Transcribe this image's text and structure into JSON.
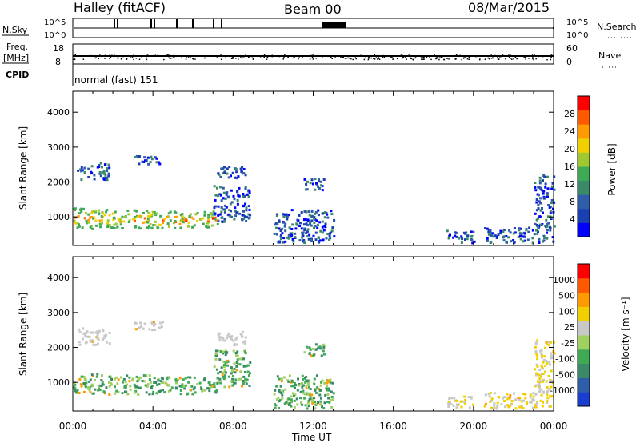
{
  "header": {
    "station": "Halley (fitACF)",
    "beam": "Beam 00",
    "date": "08/Mar/2015"
  },
  "strips": {
    "nsky_label": "N.Sky",
    "nsky_ticks": [
      "10^5",
      "10^0"
    ],
    "nsearch_label": "N.Search",
    "freq_label_1": "Freq.",
    "freq_label_2": "[MHz]",
    "freq_ticks": [
      "18",
      "8"
    ],
    "nave_label": "Nave",
    "nave_ticks": [
      "60",
      "0"
    ],
    "cpid_label": "CPID",
    "cpid_value": "normal (fast) 151"
  },
  "colors": {
    "power": [
      "#0000ff",
      "#1a3fb0",
      "#2f5da8",
      "#3a8a6a",
      "#3faa55",
      "#a0c830",
      "#f0d000",
      "#ff9a00",
      "#ff5a00",
      "#ff0000"
    ],
    "velocity": [
      "#1a3fd0",
      "#2f5da8",
      "#3a8a6a",
      "#3faa55",
      "#a0d060",
      "#c8c8c8",
      "#f0d000",
      "#ff9a00",
      "#ff5a00",
      "#ff0000"
    ]
  },
  "chart_data": [
    {
      "type": "heatmap",
      "name": "power",
      "ylabel": "Slant Range [km]",
      "xlabel": "",
      "x_ticks": [
        "00:00",
        "04:00",
        "08:00",
        "12:00",
        "16:00",
        "20:00",
        "00:00"
      ],
      "x_range_hours": [
        0,
        24
      ],
      "y_ticks": [
        1000,
        2000,
        3000,
        4000
      ],
      "y_range_km": [
        180,
        4600
      ],
      "colorbar_label": "Power [dB]",
      "colorbar_ticks": [
        "4",
        "8",
        "12",
        "16",
        "20",
        "24",
        "28"
      ],
      "scatter_regions_hours_km": [
        [
          0.0,
          2.0,
          650,
          1250
        ],
        [
          2.0,
          4.0,
          650,
          1200
        ],
        [
          4.0,
          6.0,
          650,
          1150
        ],
        [
          6.0,
          7.2,
          700,
          1150
        ],
        [
          7.0,
          8.8,
          850,
          1900
        ],
        [
          7.2,
          8.6,
          2050,
          2450
        ],
        [
          0.2,
          1.8,
          2050,
          2550
        ],
        [
          3.0,
          4.5,
          2500,
          2750
        ],
        [
          11.5,
          12.5,
          1700,
          2100
        ],
        [
          10.0,
          13.0,
          250,
          1200
        ],
        [
          18.5,
          20.0,
          250,
          600
        ],
        [
          20.5,
          24.0,
          250,
          700
        ],
        [
          23.0,
          24.0,
          700,
          2200
        ]
      ]
    },
    {
      "type": "heatmap",
      "name": "velocity",
      "ylabel": "Slant Range [km]",
      "xlabel": "Time UT",
      "x_ticks": [
        "00:00",
        "04:00",
        "08:00",
        "12:00",
        "16:00",
        "20:00",
        "00:00"
      ],
      "x_range_hours": [
        0,
        24
      ],
      "y_ticks": [
        1000,
        2000,
        3000,
        4000
      ],
      "y_range_km": [
        180,
        4600
      ],
      "colorbar_label": "Velocity [m s⁻¹]",
      "colorbar_ticks": [
        "1000",
        "500",
        "100",
        "25",
        "-25",
        "-100",
        "-500",
        "-1000"
      ],
      "scatter_regions_hours_km": [
        [
          0.0,
          2.0,
          650,
          1250
        ],
        [
          2.0,
          4.0,
          650,
          1200
        ],
        [
          4.0,
          6.0,
          650,
          1150
        ],
        [
          6.0,
          7.2,
          700,
          1150
        ],
        [
          7.0,
          8.8,
          850,
          1900
        ],
        [
          7.2,
          8.6,
          2050,
          2450
        ],
        [
          0.2,
          1.8,
          2050,
          2550
        ],
        [
          3.0,
          4.5,
          2500,
          2750
        ],
        [
          11.5,
          12.5,
          1700,
          2100
        ],
        [
          10.0,
          13.0,
          250,
          1200
        ],
        [
          18.5,
          20.0,
          250,
          600
        ],
        [
          20.5,
          24.0,
          250,
          700
        ],
        [
          23.0,
          24.0,
          700,
          2200
        ]
      ]
    }
  ]
}
